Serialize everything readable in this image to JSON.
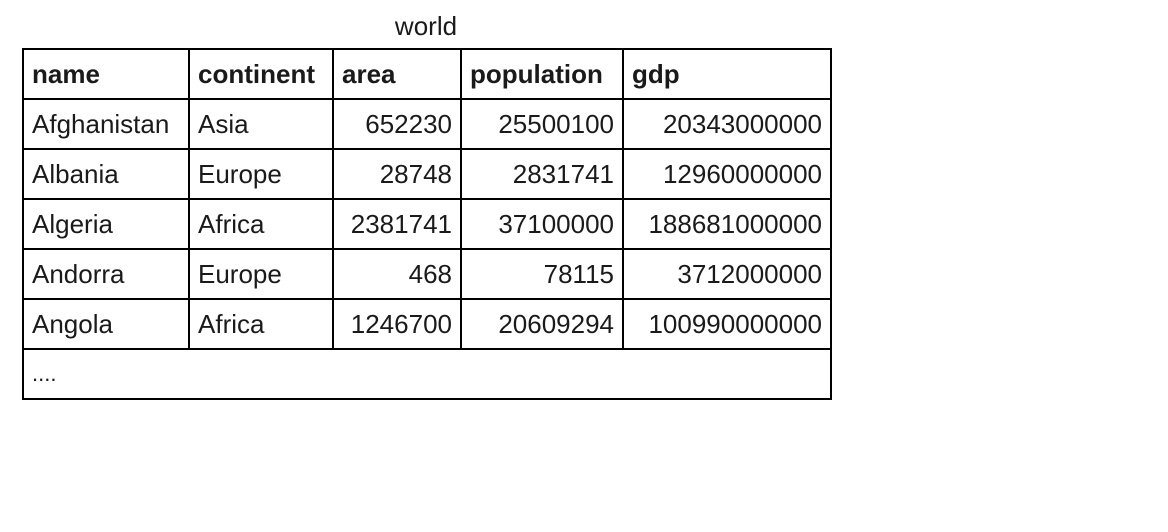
{
  "table": {
    "caption": "world",
    "columns": [
      "name",
      "continent",
      "area",
      "population",
      "gdp"
    ],
    "rows": [
      [
        "Afghanistan",
        "Asia",
        "652230",
        "25500100",
        "20343000000"
      ],
      [
        "Albania",
        "Europe",
        "28748",
        "2831741",
        "12960000000"
      ],
      [
        "Algeria",
        "Africa",
        "2381741",
        "37100000",
        "188681000000"
      ],
      [
        "Andorra",
        "Europe",
        "468",
        "78115",
        "3712000000"
      ],
      [
        "Angola",
        "Africa",
        "1246700",
        "20609294",
        "100990000000"
      ]
    ],
    "ellipsis": "...."
  }
}
